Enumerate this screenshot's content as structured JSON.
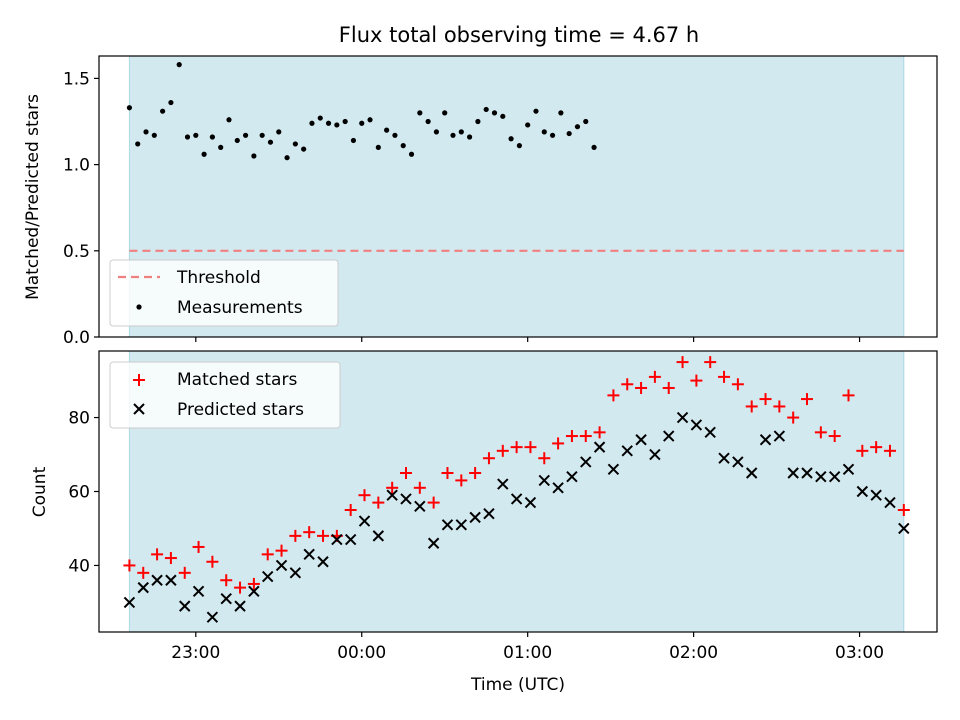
{
  "title": "Flux total observing time = 4.67 h",
  "colors": {
    "observing_window": "#d3e9f0",
    "threshold": "#f08080",
    "measurements": "#000000",
    "matched": "#ff0000",
    "predicted": "#000000"
  },
  "chart_data": [
    {
      "type": "scatter",
      "ylabel": "Matched/Predicted stars",
      "ylim": [
        0,
        1.63
      ],
      "yticks": [
        0.0,
        0.5,
        1.0,
        1.5
      ],
      "ytick_labels": [
        "0.0",
        "0.5",
        "1.0",
        "1.5"
      ],
      "x_range": [
        "22:25",
        "03:28"
      ],
      "observing_window": [
        "22:36",
        "03:16"
      ],
      "grid": false,
      "legend_position": "lower-left",
      "series": [
        {
          "name": "Threshold",
          "kind": "dashed-line",
          "x": [
            "22:36",
            "03:16"
          ],
          "y": [
            0.5,
            0.5
          ]
        },
        {
          "name": "Measurements",
          "kind": "point",
          "points": [
            [
              "22:36",
              1.33
            ],
            [
              "22:39",
              1.12
            ],
            [
              "22:42",
              1.19
            ],
            [
              "22:45",
              1.17
            ],
            [
              "22:48",
              1.31
            ],
            [
              "22:51",
              1.36
            ],
            [
              "22:54",
              1.58
            ],
            [
              "22:57",
              1.16
            ],
            [
              "23:00",
              1.17
            ],
            [
              "23:03",
              1.06
            ],
            [
              "23:06",
              1.16
            ],
            [
              "23:09",
              1.1
            ],
            [
              "23:12",
              1.26
            ],
            [
              "23:15",
              1.14
            ],
            [
              "23:18",
              1.17
            ],
            [
              "23:21",
              1.05
            ],
            [
              "23:24",
              1.17
            ],
            [
              "23:27",
              1.13
            ],
            [
              "23:30",
              1.19
            ],
            [
              "23:33",
              1.04
            ],
            [
              "23:36",
              1.12
            ],
            [
              "23:39",
              1.09
            ],
            [
              "23:42",
              1.24
            ],
            [
              "23:45",
              1.27
            ],
            [
              "23:48",
              1.24
            ],
            [
              "23:51",
              1.23
            ],
            [
              "23:54",
              1.25
            ],
            [
              "23:57",
              1.14
            ],
            [
              "00:00",
              1.24
            ],
            [
              "00:03",
              1.26
            ],
            [
              "00:06",
              1.1
            ],
            [
              "00:09",
              1.2
            ],
            [
              "00:12",
              1.17
            ],
            [
              "00:15",
              1.11
            ],
            [
              "00:18",
              1.06
            ],
            [
              "00:21",
              1.3
            ],
            [
              "00:24",
              1.25
            ],
            [
              "00:27",
              1.19
            ],
            [
              "00:30",
              1.3
            ],
            [
              "00:33",
              1.17
            ],
            [
              "00:36",
              1.19
            ],
            [
              "00:39",
              1.16
            ],
            [
              "00:42",
              1.25
            ],
            [
              "00:45",
              1.32
            ],
            [
              "00:48",
              1.3
            ],
            [
              "00:51",
              1.28
            ],
            [
              "00:54",
              1.15
            ],
            [
              "00:57",
              1.11
            ],
            [
              "01:00",
              1.23
            ],
            [
              "01:03",
              1.31
            ],
            [
              "01:06",
              1.19
            ],
            [
              "01:09",
              1.17
            ],
            [
              "01:12",
              1.3
            ],
            [
              "01:15",
              1.18
            ],
            [
              "01:18",
              1.22
            ],
            [
              "01:21",
              1.25
            ],
            [
              "01:24",
              1.1
            ]
          ]
        }
      ]
    },
    {
      "type": "scatter",
      "xlabel": "Time (UTC)",
      "ylabel": "Count",
      "ylim": [
        22,
        98
      ],
      "yticks": [
        40,
        60,
        80
      ],
      "ytick_labels": [
        "40",
        "60",
        "80"
      ],
      "xticks": [
        "23:00",
        "00:00",
        "01:00",
        "02:00",
        "03:00"
      ],
      "x_range": [
        "22:25",
        "03:28"
      ],
      "observing_window": [
        "22:36",
        "03:16"
      ],
      "grid": false,
      "legend_position": "upper-left",
      "series": [
        {
          "name": "Matched stars",
          "kind": "plus",
          "points": [
            [
              "22:36",
              40
            ],
            [
              "22:41",
              38
            ],
            [
              "22:46",
              43
            ],
            [
              "22:51",
              42
            ],
            [
              "22:56",
              38
            ],
            [
              "23:01",
              45
            ],
            [
              "23:06",
              41
            ],
            [
              "23:11",
              36
            ],
            [
              "23:16",
              34
            ],
            [
              "23:21",
              35
            ],
            [
              "23:26",
              43
            ],
            [
              "23:31",
              44
            ],
            [
              "23:36",
              48
            ],
            [
              "23:41",
              49
            ],
            [
              "23:46",
              48
            ],
            [
              "23:51",
              48
            ],
            [
              "23:56",
              55
            ],
            [
              "00:01",
              59
            ],
            [
              "00:06",
              57
            ],
            [
              "00:11",
              61
            ],
            [
              "00:16",
              65
            ],
            [
              "00:21",
              61
            ],
            [
              "00:26",
              57
            ],
            [
              "00:31",
              65
            ],
            [
              "00:36",
              63
            ],
            [
              "00:41",
              65
            ],
            [
              "00:46",
              69
            ],
            [
              "00:51",
              71
            ],
            [
              "00:56",
              72
            ],
            [
              "01:01",
              72
            ],
            [
              "01:06",
              69
            ],
            [
              "01:11",
              73
            ],
            [
              "01:16",
              75
            ],
            [
              "01:21",
              75
            ],
            [
              "01:26",
              76
            ],
            [
              "01:31",
              86
            ],
            [
              "01:36",
              89
            ],
            [
              "01:41",
              88
            ],
            [
              "01:46",
              91
            ],
            [
              "01:51",
              88
            ],
            [
              "01:56",
              95
            ],
            [
              "02:01",
              90
            ],
            [
              "02:06",
              95
            ],
            [
              "02:11",
              91
            ],
            [
              "02:16",
              89
            ],
            [
              "02:21",
              83
            ],
            [
              "02:26",
              85
            ],
            [
              "02:31",
              83
            ],
            [
              "02:36",
              80
            ],
            [
              "02:41",
              85
            ],
            [
              "02:46",
              76
            ],
            [
              "02:51",
              75
            ],
            [
              "02:56",
              86
            ],
            [
              "03:01",
              71
            ],
            [
              "03:06",
              72
            ],
            [
              "03:11",
              71
            ],
            [
              "03:16",
              55
            ]
          ]
        },
        {
          "name": "Predicted stars",
          "kind": "x",
          "points": [
            [
              "22:36",
              30
            ],
            [
              "22:41",
              34
            ],
            [
              "22:46",
              36
            ],
            [
              "22:51",
              36
            ],
            [
              "22:56",
              29
            ],
            [
              "23:01",
              33
            ],
            [
              "23:06",
              26
            ],
            [
              "23:11",
              31
            ],
            [
              "23:16",
              29
            ],
            [
              "23:21",
              33
            ],
            [
              "23:26",
              37
            ],
            [
              "23:31",
              40
            ],
            [
              "23:36",
              38
            ],
            [
              "23:41",
              43
            ],
            [
              "23:46",
              41
            ],
            [
              "23:51",
              47
            ],
            [
              "23:56",
              47
            ],
            [
              "00:01",
              52
            ],
            [
              "00:06",
              48
            ],
            [
              "00:11",
              59
            ],
            [
              "00:16",
              58
            ],
            [
              "00:21",
              56
            ],
            [
              "00:26",
              46
            ],
            [
              "00:31",
              51
            ],
            [
              "00:36",
              51
            ],
            [
              "00:41",
              53
            ],
            [
              "00:46",
              54
            ],
            [
              "00:51",
              62
            ],
            [
              "00:56",
              58
            ],
            [
              "01:01",
              57
            ],
            [
              "01:06",
              63
            ],
            [
              "01:11",
              61
            ],
            [
              "01:16",
              64
            ],
            [
              "01:21",
              68
            ],
            [
              "01:26",
              72
            ],
            [
              "01:31",
              66
            ],
            [
              "01:36",
              71
            ],
            [
              "01:41",
              74
            ],
            [
              "01:46",
              70
            ],
            [
              "01:51",
              75
            ],
            [
              "01:56",
              80
            ],
            [
              "02:01",
              78
            ],
            [
              "02:06",
              76
            ],
            [
              "02:11",
              69
            ],
            [
              "02:16",
              68
            ],
            [
              "02:21",
              65
            ],
            [
              "02:26",
              74
            ],
            [
              "02:31",
              75
            ],
            [
              "02:36",
              65
            ],
            [
              "02:41",
              65
            ],
            [
              "02:46",
              64
            ],
            [
              "02:51",
              64
            ],
            [
              "02:56",
              66
            ],
            [
              "03:01",
              60
            ],
            [
              "03:06",
              59
            ],
            [
              "03:11",
              57
            ],
            [
              "03:16",
              50
            ]
          ]
        }
      ]
    }
  ]
}
